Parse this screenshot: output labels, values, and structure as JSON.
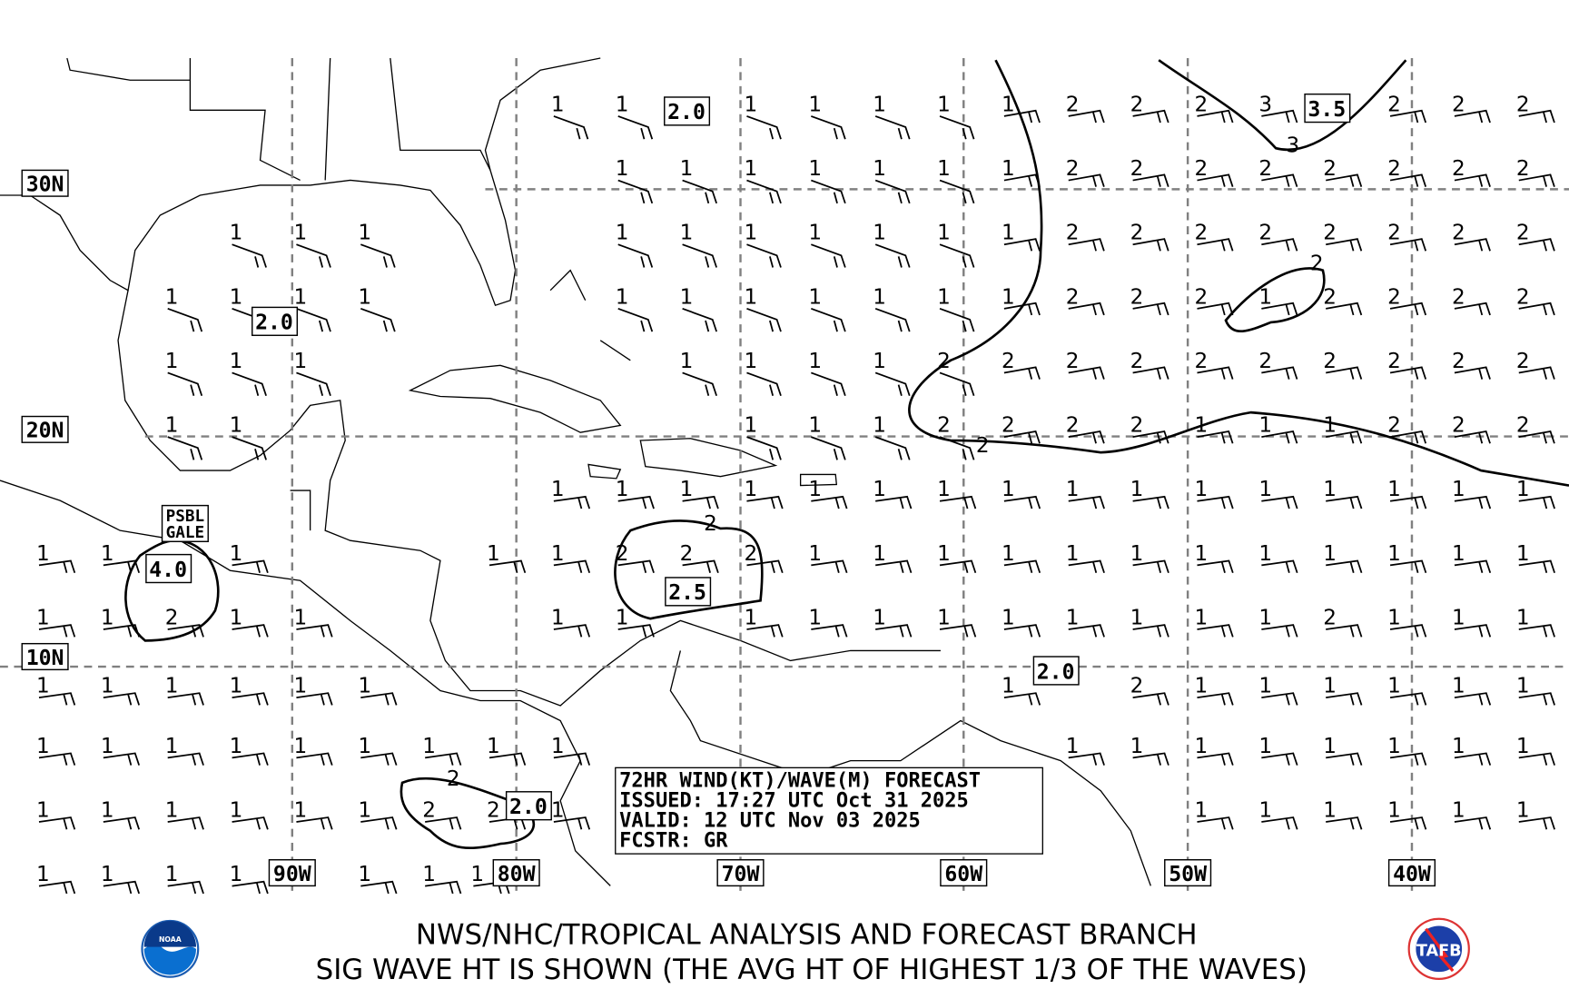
{
  "info_box": {
    "line1": "72HR WIND(KT)/WAVE(M) FORECAST",
    "line2": "ISSUED: 17:27 UTC Oct 31 2025",
    "line3": "VALID: 12 UTC Nov 03 2025",
    "line4": "FCSTR: GR"
  },
  "footer": {
    "line1": "NWS/NHC/TROPICAL ANALYSIS AND FORECAST BRANCH",
    "line2": "SIG WAVE HT IS SHOWN (THE AVG HT OF HIGHEST 1/3 OF THE WAVES)"
  },
  "logos": {
    "left": "NOAA",
    "right": "TAFB"
  },
  "latitude_labels": [
    "30N",
    "20N",
    "10N"
  ],
  "longitude_labels": [
    "90W",
    "80W",
    "70W",
    "60W",
    "50W",
    "40W"
  ],
  "contour_labels": {
    "a": "2.0",
    "b": "2.0",
    "c": "2.0",
    "d": "2.0",
    "e": "3.5",
    "f": "2.5",
    "g": "4.0",
    "gale1": "PSBL",
    "gale2": "GALE",
    "line_2a": "2",
    "line_3": "3",
    "line_2b": "2",
    "line_2c": "2",
    "line_2d": "2"
  },
  "wave_heights_m": [
    [
      "",
      "",
      "",
      "",
      "",
      "",
      "",
      "",
      "1",
      "1",
      "",
      "1",
      "1",
      "1",
      "1",
      "1",
      "2",
      "2",
      "2",
      "3",
      "",
      "2",
      "2",
      "2"
    ],
    [
      "",
      "",
      "",
      "",
      "",
      "",
      "",
      "",
      "",
      "1",
      "1",
      "1",
      "1",
      "1",
      "1",
      "1",
      "2",
      "2",
      "2",
      "2",
      "2",
      "2",
      "2",
      "2"
    ],
    [
      "",
      "",
      "",
      "1",
      "1",
      "1",
      "",
      "",
      "",
      "1",
      "1",
      "1",
      "1",
      "1",
      "1",
      "1",
      "2",
      "2",
      "2",
      "2",
      "2",
      "2",
      "2",
      "2"
    ],
    [
      "",
      "",
      "1",
      "1",
      "1",
      "1",
      "",
      "",
      "",
      "1",
      "1",
      "1",
      "1",
      "1",
      "1",
      "1",
      "2",
      "2",
      "2",
      "1",
      "2",
      "2",
      "2",
      "2"
    ],
    [
      "",
      "",
      "1",
      "1",
      "1",
      "",
      "",
      "",
      "",
      "",
      "1",
      "1",
      "1",
      "1",
      "2",
      "2",
      "2",
      "2",
      "2",
      "2",
      "2",
      "2",
      "2",
      "2"
    ],
    [
      "",
      "",
      "1",
      "1",
      "",
      "",
      "",
      "",
      "",
      "",
      "",
      "1",
      "1",
      "1",
      "2",
      "2",
      "2",
      "2",
      "1",
      "1",
      "1",
      "2",
      "2",
      "2"
    ],
    [
      "",
      "",
      "",
      "",
      "",
      "",
      "",
      "",
      "1",
      "1",
      "1",
      "1",
      "1",
      "1",
      "1",
      "1",
      "1",
      "1",
      "1",
      "1",
      "1",
      "1",
      "1",
      "1"
    ],
    [
      "1",
      "1",
      "",
      "1",
      "",
      "",
      "",
      "1",
      "1",
      "2",
      "2",
      "2",
      "1",
      "1",
      "1",
      "1",
      "1",
      "1",
      "1",
      "1",
      "1",
      "1",
      "1",
      "1"
    ],
    [
      "1",
      "1",
      "2",
      "1",
      "1",
      "",
      "",
      "",
      "1",
      "1",
      "",
      "1",
      "1",
      "1",
      "1",
      "1",
      "1",
      "1",
      "1",
      "1",
      "2",
      "1",
      "1",
      "1"
    ],
    [
      "1",
      "1",
      "1",
      "1",
      "1",
      "1",
      "",
      "",
      "",
      "",
      "",
      "",
      "",
      "",
      "",
      "1",
      "",
      "2",
      "1",
      "1",
      "1",
      "1",
      "1",
      "1"
    ],
    [
      "1",
      "1",
      "1",
      "1",
      "1",
      "1",
      "1",
      "1",
      "1",
      "",
      "",
      "",
      "",
      "",
      "",
      "",
      "1",
      "1",
      "1",
      "1",
      "1",
      "1",
      "1",
      "1"
    ],
    [
      "1",
      "1",
      "1",
      "1",
      "1",
      "1",
      "2",
      "2",
      "1",
      "",
      "",
      "",
      "",
      "",
      "",
      "",
      "",
      "",
      "1",
      "1",
      "1",
      "1",
      "1",
      "1"
    ],
    [
      "1",
      "1",
      "1",
      "1",
      "",
      "1",
      "1",
      "1",
      "",
      "",
      "",
      "",
      "",
      "",
      "",
      "",
      "",
      "",
      "",
      "",
      "",
      "",
      "",
      ""
    ]
  ]
}
